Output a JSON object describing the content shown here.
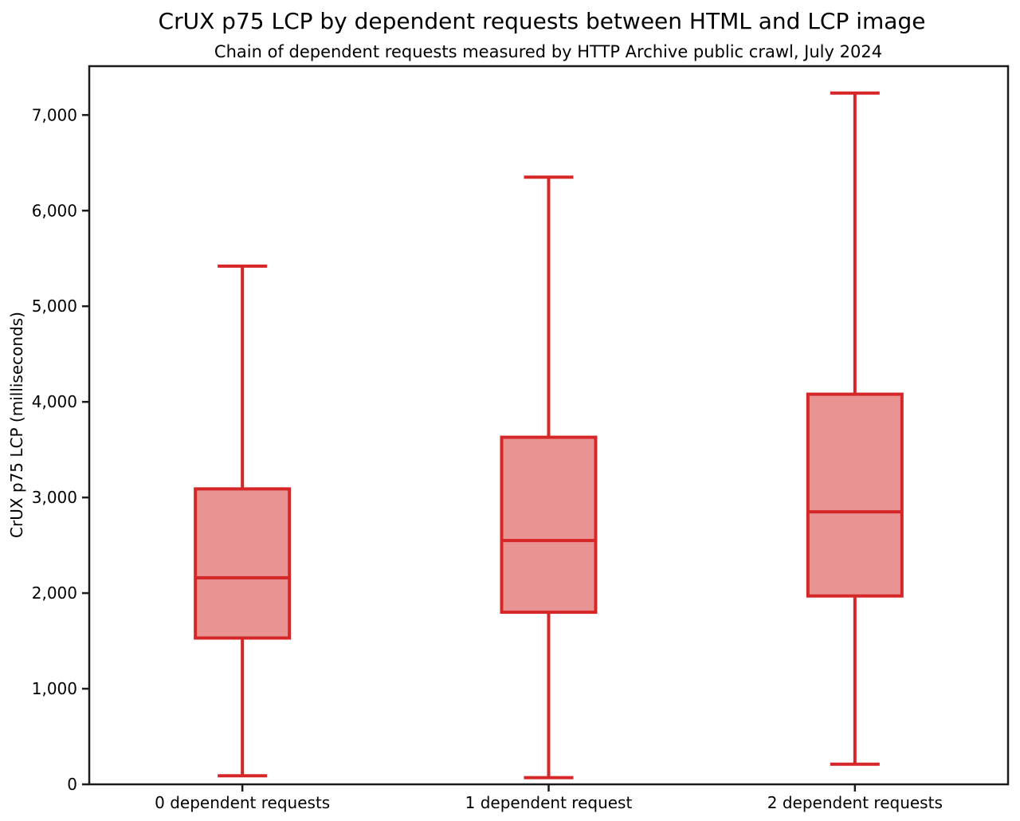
{
  "chart_data": {
    "type": "boxplot",
    "title": "CrUX p75 LCP by dependent requests between HTML and LCP image",
    "subtitle": "Chain of dependent requests measured by HTTP Archive public crawl, July 2024",
    "ylabel": "CrUX p75 LCP (milliseconds)",
    "xlabel": "",
    "categories": [
      "0 dependent requests",
      "1 dependent request",
      "2 dependent requests"
    ],
    "series": [
      {
        "category": "0 dependent requests",
        "whisker_low": 90,
        "q1": 1530,
        "median": 2160,
        "q3": 3090,
        "whisker_high": 5420
      },
      {
        "category": "1 dependent request",
        "whisker_low": 70,
        "q1": 1800,
        "median": 2550,
        "q3": 3630,
        "whisker_high": 6350
      },
      {
        "category": "2 dependent requests",
        "whisker_low": 210,
        "q1": 1970,
        "median": 2850,
        "q3": 4080,
        "whisker_high": 7230
      }
    ],
    "ylim": [
      0,
      7511
    ],
    "yticks": [
      0,
      1000,
      2000,
      3000,
      4000,
      5000,
      6000,
      7000
    ],
    "ytick_labels": [
      "0",
      "1,000",
      "2,000",
      "3,000",
      "4,000",
      "5,000",
      "6,000",
      "7,000"
    ],
    "grid": false,
    "legend": "none",
    "colors": {
      "box_stroke": "#d62728",
      "box_fill": "rgba(214,39,40,0.5)",
      "axis": "#1a1a1a",
      "text": "#000000"
    }
  }
}
